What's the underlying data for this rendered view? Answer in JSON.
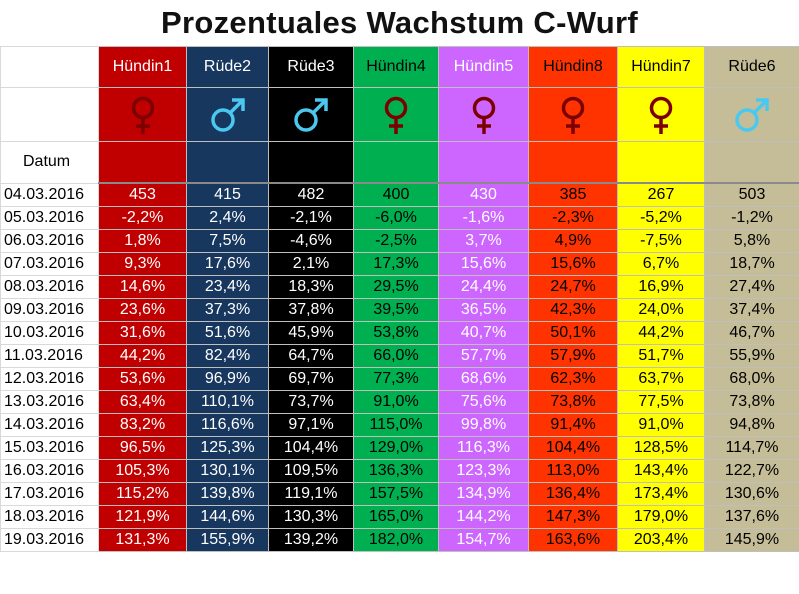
{
  "title": "Prozentuales Wachstum C-Wurf",
  "datum_label": "Datum",
  "columns": [
    {
      "name": "Hündin1",
      "sex": "female",
      "bg": "#c00000",
      "fg": "#ffffff",
      "symbol": "#7b0000"
    },
    {
      "name": "Rüde2",
      "sex": "male",
      "bg": "#17375e",
      "fg": "#ffffff",
      "symbol": "#4bc8f0"
    },
    {
      "name": "Rüde3",
      "sex": "male",
      "bg": "#000000",
      "fg": "#ffffff",
      "symbol": "#4bc8f0"
    },
    {
      "name": "Hündin4",
      "sex": "female",
      "bg": "#00b050",
      "fg": "#000000",
      "symbol": "#7b0000"
    },
    {
      "name": "Hündin5",
      "sex": "female",
      "bg": "#cc66ff",
      "fg": "#ffffff",
      "symbol": "#7b0000"
    },
    {
      "name": "Hündin8",
      "sex": "female",
      "bg": "#ff3300",
      "fg": "#000000",
      "symbol": "#7b0000"
    },
    {
      "name": "Hündin7",
      "sex": "female",
      "bg": "#ffff00",
      "fg": "#000000",
      "symbol": "#7b0000"
    },
    {
      "name": "Rüde6",
      "sex": "male",
      "bg": "#c4bd97",
      "fg": "#000000",
      "symbol": "#4bc8f0"
    }
  ],
  "rows": [
    {
      "date": "04.03.2016",
      "values": [
        "453",
        "415",
        "482",
        "400",
        "430",
        "385",
        "267",
        "503"
      ]
    },
    {
      "date": "05.03.2016",
      "values": [
        "-2,2%",
        "2,4%",
        "-2,1%",
        "-6,0%",
        "-1,6%",
        "-2,3%",
        "-5,2%",
        "-1,2%"
      ]
    },
    {
      "date": "06.03.2016",
      "values": [
        "1,8%",
        "7,5%",
        "-4,6%",
        "-2,5%",
        "3,7%",
        "4,9%",
        "-7,5%",
        "5,8%"
      ]
    },
    {
      "date": "07.03.2016",
      "values": [
        "9,3%",
        "17,6%",
        "2,1%",
        "17,3%",
        "15,6%",
        "15,6%",
        "6,7%",
        "18,7%"
      ]
    },
    {
      "date": "08.03.2016",
      "values": [
        "14,6%",
        "23,4%",
        "18,3%",
        "29,5%",
        "24,4%",
        "24,7%",
        "16,9%",
        "27,4%"
      ]
    },
    {
      "date": "09.03.2016",
      "values": [
        "23,6%",
        "37,3%",
        "37,8%",
        "39,5%",
        "36,5%",
        "42,3%",
        "24,0%",
        "37,4%"
      ]
    },
    {
      "date": "10.03.2016",
      "values": [
        "31,6%",
        "51,6%",
        "45,9%",
        "53,8%",
        "40,7%",
        "50,1%",
        "44,2%",
        "46,7%"
      ]
    },
    {
      "date": "11.03.2016",
      "values": [
        "44,2%",
        "82,4%",
        "64,7%",
        "66,0%",
        "57,7%",
        "57,9%",
        "51,7%",
        "55,9%"
      ]
    },
    {
      "date": "12.03.2016",
      "values": [
        "53,6%",
        "96,9%",
        "69,7%",
        "77,3%",
        "68,6%",
        "62,3%",
        "63,7%",
        "68,0%"
      ]
    },
    {
      "date": "13.03.2016",
      "values": [
        "63,4%",
        "110,1%",
        "73,7%",
        "91,0%",
        "75,6%",
        "73,8%",
        "77,5%",
        "73,8%"
      ]
    },
    {
      "date": "14.03.2016",
      "values": [
        "83,2%",
        "116,6%",
        "97,1%",
        "115,0%",
        "99,8%",
        "91,4%",
        "91,0%",
        "94,8%"
      ]
    },
    {
      "date": "15.03.2016",
      "values": [
        "96,5%",
        "125,3%",
        "104,4%",
        "129,0%",
        "116,3%",
        "104,4%",
        "128,5%",
        "114,7%"
      ]
    },
    {
      "date": "16.03.2016",
      "values": [
        "105,3%",
        "130,1%",
        "109,5%",
        "136,3%",
        "123,3%",
        "113,0%",
        "143,4%",
        "122,7%"
      ]
    },
    {
      "date": "17.03.2016",
      "values": [
        "115,2%",
        "139,8%",
        "119,1%",
        "157,5%",
        "134,9%",
        "136,4%",
        "173,4%",
        "130,6%"
      ]
    },
    {
      "date": "18.03.2016",
      "values": [
        "121,9%",
        "144,6%",
        "130,3%",
        "165,0%",
        "144,2%",
        "147,3%",
        "179,0%",
        "137,6%"
      ]
    },
    {
      "date": "19.03.2016",
      "values": [
        "131,3%",
        "155,9%",
        "139,2%",
        "182,0%",
        "154,7%",
        "163,6%",
        "203,4%",
        "145,9%"
      ]
    }
  ]
}
